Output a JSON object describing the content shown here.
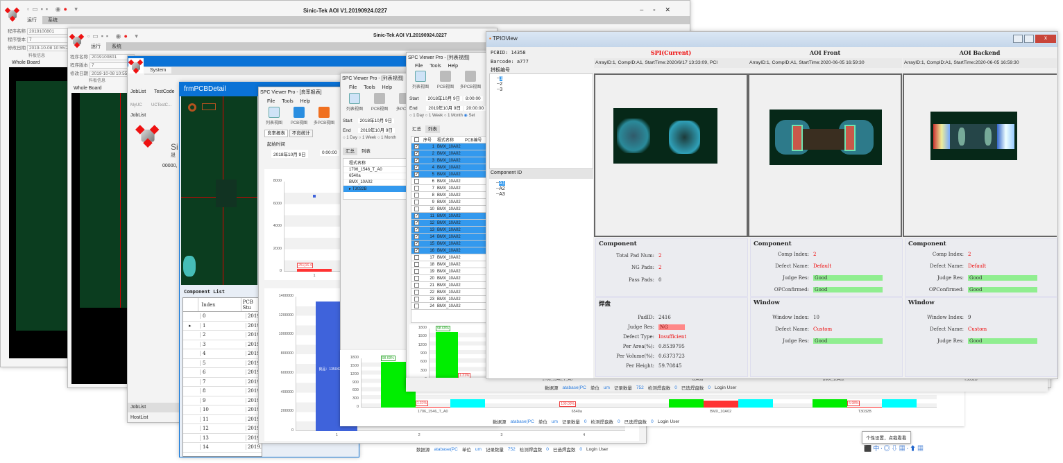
{
  "aoi1": {
    "title": "Sinic-Tek AOI V1.20190924.0227",
    "tabs": [
      "运行",
      "系统"
    ],
    "fields": [
      {
        "label": "程序名称",
        "value": "2019100801"
      },
      {
        "label": "程序版本",
        "value": "7"
      },
      {
        "label": "修改日期",
        "value": "2019-10-08 10:55:2"
      }
    ],
    "panel_label": "料板信息",
    "board_label": "Whole Board"
  },
  "aoi2": {
    "title": "Sinic-Tek AOI V1.20190924.0227",
    "tabs": [
      "运行",
      "系统"
    ],
    "fields": [
      {
        "label": "程序名称",
        "value": "2019100801"
      },
      {
        "label": "程序版本",
        "value": "7"
      },
      {
        "label": "修改日期",
        "value": "2019-10-08 10:55:5"
      }
    ],
    "panel_label": "料板信息",
    "board_label": "Whole Board"
  },
  "system": {
    "tab": "System",
    "ribbon": [
      "JobList",
      "TestCode"
    ],
    "groups": [
      "MyUC",
      "UCTestC..."
    ],
    "joblist": "JobList",
    "brand": "Si",
    "brand_sub": "晟",
    "count": "00000,",
    "nav": [
      "JobList",
      "HostList"
    ]
  },
  "pcbdetail": {
    "title": "frmPCBDetail",
    "list_title": "Component List",
    "columns": [
      "Index",
      "PCB Stu"
    ],
    "rows": [
      "0",
      "1",
      "2",
      "3",
      "4",
      "5",
      "6",
      "7",
      "8",
      "9",
      "10",
      "11",
      "12",
      "13",
      "14"
    ],
    "date": "2019."
  },
  "spc_report": {
    "title": "SPC Viewer Pro - [良率报表]",
    "menu": [
      "File",
      "Tools",
      "Help"
    ],
    "toolbar": [
      "列表视图",
      "PCB视图",
      "多PCB视图"
    ],
    "tabs": [
      "良率报表",
      "不良统计"
    ],
    "start_label": "起始时间",
    "date": "2018年10月  9日",
    "time": "0:00:00"
  },
  "spc_list1": {
    "title": "SPC Viewer Pro - [列表视图]",
    "menu": [
      "File",
      "Tools",
      "Help"
    ],
    "toolbar": [
      "列表视图",
      "PCB视图",
      "多PCB视"
    ],
    "start_label": "Start",
    "start_date": "2018年10月  9日",
    "end_label": "End",
    "end_date": "2019年10月  9日",
    "ranges": [
      "1 Day",
      "1 Week",
      "1 Month"
    ],
    "tabs": [
      "汇总",
      "列表"
    ],
    "column": "程式名称",
    "programs": [
      "1706_1546_T_A0",
      "6540a",
      "BMX_10A02",
      "T3032B"
    ]
  },
  "spc_list2": {
    "title": "SPC Viewer Pro - [列表视图]",
    "menu": [
      "File",
      "Tools",
      "Help"
    ],
    "toolbar": [
      "列表视图",
      "PCB视图",
      "多PCB视图"
    ],
    "start_label": "Start",
    "start_date": "2018年10月  9日",
    "start_time": "8:00:00",
    "end_label": "End",
    "end_date": "2019年10月  9日",
    "end_time": "20:00:00",
    "ranges": [
      "1 Day",
      "1 Week",
      "1 Month",
      "Set"
    ],
    "tabs": [
      "汇总",
      "列表"
    ],
    "columns": [
      "序号",
      "程式名称",
      "PCB编号"
    ],
    "rows": [
      {
        "n": "1",
        "name": "BMX_10A02",
        "checked": true
      },
      {
        "n": "2",
        "name": "BMX_10A02",
        "checked": true
      },
      {
        "n": "3",
        "name": "BMX_10A02",
        "checked": true
      },
      {
        "n": "4",
        "name": "BMX_10A02",
        "checked": true
      },
      {
        "n": "5",
        "name": "BMX_10A02",
        "checked": true
      },
      {
        "n": "6",
        "name": "BMX_10A02",
        "checked": false
      },
      {
        "n": "7",
        "name": "BMX_10A02",
        "checked": false
      },
      {
        "n": "8",
        "name": "BMX_10A02",
        "checked": false
      },
      {
        "n": "9",
        "name": "BMX_10A02",
        "checked": false
      },
      {
        "n": "10",
        "name": "BMX_10A02",
        "checked": false
      },
      {
        "n": "11",
        "name": "BMX_10A02",
        "checked": true
      },
      {
        "n": "12",
        "name": "BMX_10A02",
        "checked": true
      },
      {
        "n": "13",
        "name": "BMX_10A02",
        "checked": true
      },
      {
        "n": "14",
        "name": "BMX_10A02",
        "checked": true
      },
      {
        "n": "15",
        "name": "BMX_10A02",
        "checked": true
      },
      {
        "n": "16",
        "name": "BMX_10A02",
        "checked": true
      },
      {
        "n": "17",
        "name": "BMX_10A02",
        "checked": false
      },
      {
        "n": "18",
        "name": "BMX_10A02",
        "checked": false
      },
      {
        "n": "19",
        "name": "BMX_10A02",
        "checked": false
      },
      {
        "n": "20",
        "name": "BMX_10A02",
        "checked": false
      },
      {
        "n": "21",
        "name": "BMX_10A02",
        "checked": false
      },
      {
        "n": "22",
        "name": "BMX_10A02",
        "checked": false
      },
      {
        "n": "23",
        "name": "BMX_10A02",
        "checked": false
      },
      {
        "n": "24",
        "name": "BMX_10A02",
        "checked": false
      }
    ]
  },
  "status": {
    "source_label": "数据源",
    "source": "atabase(PC",
    "unit_label": "单位",
    "unit": "um",
    "records_label": "记录数量",
    "records": "752",
    "pads_label": "检测焊盘数",
    "pads": "0",
    "selected_label": "已选焊盘数",
    "selected": "0",
    "user": "Login User",
    "records_b": "0"
  },
  "tpio": {
    "title": "TPIOView",
    "pcbid": "PCBID: 14358",
    "barcode": "Barcode: a777",
    "array_label": "拼板编号",
    "arrays": [
      "1",
      "2",
      "3"
    ],
    "comp_label": "Component ID",
    "comps": [
      "A1",
      "A2",
      "A3"
    ],
    "cols": [
      {
        "title": "SPI(Current)",
        "info": "ArrayID:1, CompID:A1, StartTime:2020/6/17 13:33:09, PCI",
        "current": true
      },
      {
        "title": "AOI Front",
        "info": "ArrayID:1, CompID:A1, StartTime:2020-06-05 16:59:30"
      },
      {
        "title": "AOI Backend",
        "info": "ArrayID:1, CompID:A1, StartTime:2020-06-05 16:59:30"
      }
    ],
    "spi_comp": {
      "heading": "Component",
      "total_k": "Total Pad Num:",
      "total": "2",
      "ng_k": "NG Pads:",
      "ng": "2",
      "pass_k": "Pass Pads:",
      "pass": "0"
    },
    "spi_pad": {
      "heading": "焊盘",
      "padid_k": "PadID:",
      "padid": "2416",
      "judge_k": "Judge Res:",
      "judge": "NG",
      "dtype_k": "Defect Type:",
      "dtype": "Insufficient",
      "area_k": "Per Area(%):",
      "area": "0.8539795",
      "vol_k": "Per Volume(%):",
      "vol": "0.6373723",
      "height_k": "Per Height:",
      "height": "59.70845"
    },
    "aoi": [
      {
        "heading": "Component",
        "idx_k": "Comp Index:",
        "idx": "2",
        "defect_k": "Defect Name:",
        "defect": "Default",
        "judge_k": "Judge Res:",
        "judge": "Good",
        "op_k": "OPConfirmed:",
        "op": "Good",
        "win_heading": "Window",
        "widx_k": "Window Index:",
        "widx": "10",
        "wdef_k": "Defect Name:",
        "wdef": "Custom",
        "wjudge_k": "Judge Res:",
        "wjudge": "Good"
      },
      {
        "heading": "Component",
        "idx_k": "Comp Index:",
        "idx": "2",
        "defect_k": "Defect Name:",
        "defect": "Default",
        "judge_k": "Judge Res:",
        "judge": "Good",
        "op_k": "OPConfirmed:",
        "op": "Good",
        "win_heading": "Window",
        "widx_k": "Window Index:",
        "widx": "9",
        "wdef_k": "Defect Name:",
        "wdef": "Custom",
        "wjudge_k": "Judge Res:",
        "wjudge": "Good"
      }
    ]
  },
  "tooltip": "个性设置，点我看看",
  "colors": {
    "good": "#90ee90",
    "ng": "#ff8080",
    "selection": "#3399ee",
    "title_blue": "#0a72d6",
    "bar_green": "#00ee00",
    "bar_red": "#ff3333",
    "bar_cyan": "#00ffff",
    "bar_blue": "#3f63db"
  },
  "chart_data": [
    {
      "type": "bar",
      "yticks": [
        "0",
        "300",
        "600",
        "900",
        "1200",
        "1500",
        "1800"
      ],
      "ylim": [
        0,
        1800
      ],
      "categories": [
        "1706_1546_T_A0"
      ],
      "bars": [
        {
          "cat": 0,
          "value": 1680,
          "color": "green",
          "label": "98.69%"
        },
        {
          "cat": 0,
          "value": 22,
          "color": "red",
          "label": "1.31%"
        }
      ]
    },
    {
      "type": "bar",
      "yticks": [
        "0",
        "300",
        "600",
        "900",
        "1200",
        "1500",
        "1800"
      ],
      "ylim": [
        0,
        1800
      ],
      "categories": [
        "1706_1546_T_A0",
        "6540a",
        "BMX_10A02",
        "T3032B"
      ],
      "bars": [
        {
          "cat": 0,
          "value": 1680,
          "color": "green",
          "label": "98.69%"
        },
        {
          "cat": 0,
          "value": 22,
          "color": "red",
          "label": "1.31%"
        },
        {
          "cat": 0,
          "value": 300,
          "color": "cyan"
        },
        {
          "cat": 1,
          "value": 0,
          "color": "red",
          "label": "100.00%"
        },
        {
          "cat": 2,
          "value": 300,
          "color": "green"
        },
        {
          "cat": 2,
          "value": 250,
          "color": "red"
        },
        {
          "cat": 2,
          "value": 300,
          "color": "cyan"
        },
        {
          "cat": 3,
          "value": 300,
          "color": "green"
        },
        {
          "cat": 3,
          "value": 18,
          "color": "red",
          "label": "5.98%"
        },
        {
          "cat": 3,
          "value": 300,
          "color": "cyan"
        }
      ]
    },
    {
      "type": "bar",
      "yticks": [
        "0",
        "200000",
        "400000",
        "600000",
        "800000",
        "1000000",
        "1200000",
        "1400000"
      ],
      "ylim": [
        0,
        1400000
      ],
      "categories": [
        "1",
        "2",
        "3",
        "4"
      ],
      "bars": [
        {
          "cat": 0,
          "value": 1350422,
          "color": "blue",
          "label": "良品：1350422"
        }
      ]
    },
    {
      "type": "line",
      "yticks": [
        "0",
        "2000",
        "4000",
        "6000",
        "8000"
      ],
      "ylim": [
        0,
        8000
      ],
      "categories": [
        "1"
      ],
      "points": [
        {
          "cat": 0,
          "value": 6700,
          "color": "blue"
        }
      ],
      "bars": [
        {
          "cat": 0,
          "value": 251,
          "color": "red",
          "label": "251|16.4"
        }
      ]
    }
  ]
}
